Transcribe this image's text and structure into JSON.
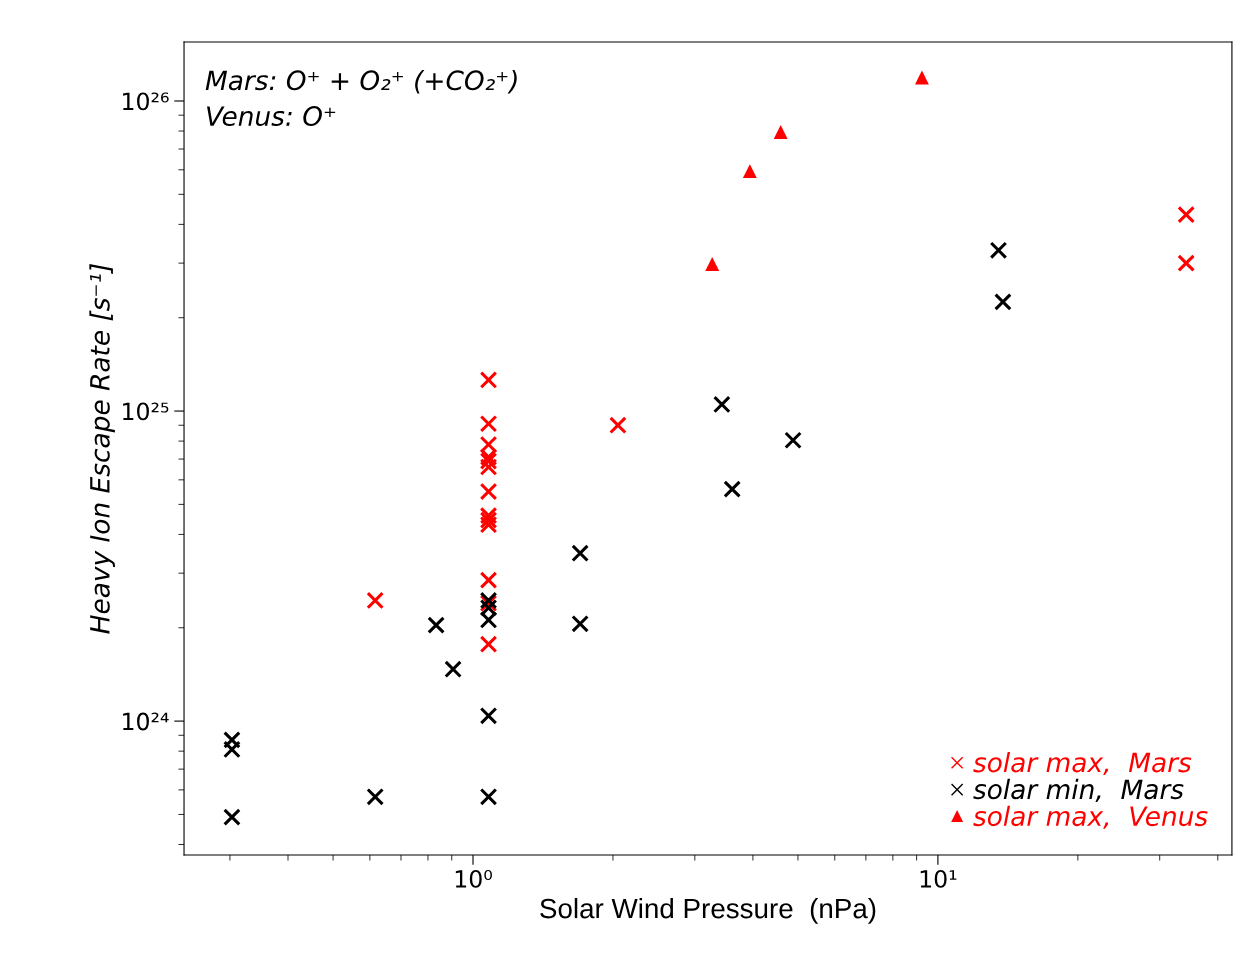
{
  "chart_data": {
    "type": "scatter",
    "xlabel": "Solar Wind Pressure  (nPa)",
    "ylabel": "Heavy Ion Escape Rate [s⁻¹]",
    "log": "xy",
    "grid": false,
    "legend": "bottom right",
    "xlim": [
      0.239,
      42.9
    ],
    "ylim": [
      3.7e+23,
      1.55e+26
    ],
    "xticks": [
      {
        "value": 1,
        "label": "10⁰"
      },
      {
        "value": 10,
        "label": "10¹"
      }
    ],
    "yticks": [
      {
        "value": 1e+24,
        "label": "10²⁴"
      },
      {
        "value": 1e+25,
        "label": "10²⁵"
      },
      {
        "value": 1e+26,
        "label": "10²⁶"
      }
    ],
    "annotations": [
      "Mars: O⁺ + O₂⁺ (+CO₂⁺)",
      "Venus: O⁺"
    ],
    "series": [
      {
        "name": "solar max,  Mars",
        "color": "#ff0000",
        "marker": "cross",
        "x": [
          0.616,
          1.08,
          1.08,
          1.08,
          1.08,
          1.08,
          1.08,
          1.08,
          1.08,
          1.08,
          1.08,
          1.08,
          1.08,
          1.08,
          2.05,
          34.2,
          34.2
        ],
        "values": [
          2.45e+24,
          1.26e+25,
          9.1e+24,
          7.8e+24,
          7.1e+24,
          6.9e+24,
          6.6e+24,
          5.5e+24,
          4.6e+24,
          4.45e+24,
          4.3e+24,
          2.85e+24,
          2.4e+24,
          1.77e+24,
          9e+24,
          4.3e+25,
          3e+25
        ]
      },
      {
        "name": "solar min,  Mars",
        "color": "#000000",
        "marker": "cross",
        "x": [
          0.303,
          0.303,
          0.303,
          0.616,
          1.08,
          0.833,
          0.906,
          1.08,
          1.08,
          1.08,
          1.08,
          1.7,
          1.7,
          3.43,
          3.61,
          4.88,
          13.5,
          13.8
        ],
        "values": [
          8.7e+23,
          8.1e+23,
          4.9e+23,
          5.7e+23,
          5.7e+23,
          2.04e+24,
          1.47e+24,
          2.45e+24,
          2.32e+24,
          2.12e+24,
          1.04e+24,
          3.48e+24,
          2.06e+24,
          1.05e+25,
          5.6e+24,
          8.05e+24,
          3.3e+25,
          2.25e+25
        ]
      },
      {
        "name": "solar max,  Venus",
        "color": "#ff0000",
        "marker": "triangle",
        "x": [
          3.27,
          3.94,
          4.59,
          9.24
        ],
        "values": [
          2.98e+25,
          5.94e+25,
          7.94e+25,
          1.19e+26
        ]
      }
    ]
  }
}
